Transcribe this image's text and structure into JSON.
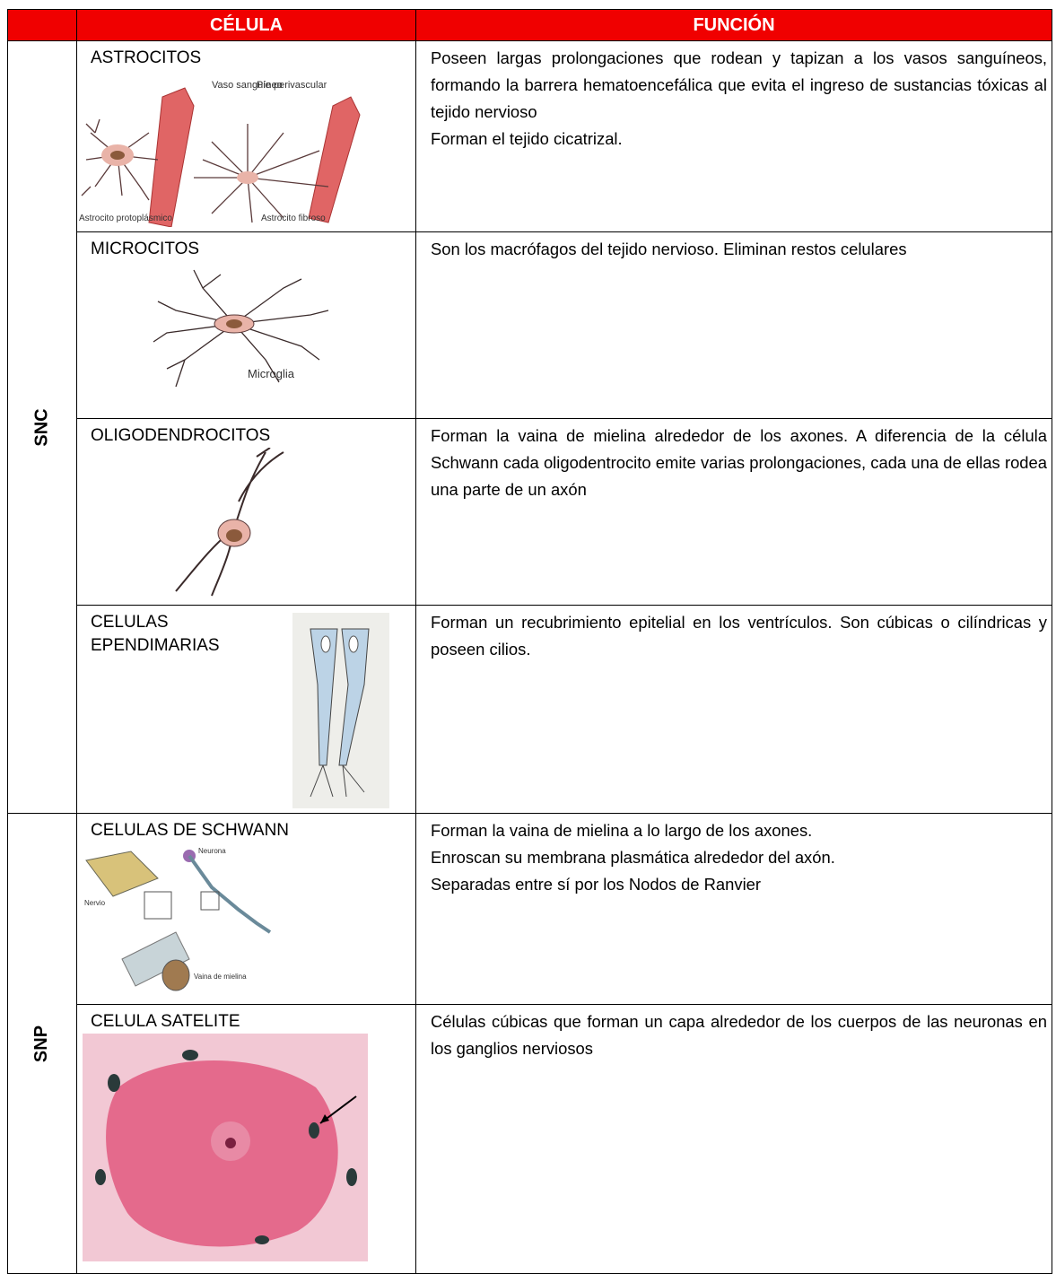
{
  "header": {
    "cell": "CÉLULA",
    "function": "FUNCIÓN"
  },
  "groups": [
    {
      "label": "SNC",
      "rows": [
        {
          "cell": [
            "ASTROCITOS"
          ],
          "function": [
            "Poseen largas prolongaciones que rodean y tapizan a los vasos sanguíneos, formando la barrera hematoencefálica que evita el ingreso de sustancias tóxicas al tejido nervioso",
            "Forman el tejido cicatrizal."
          ],
          "figure_labels": [
            "Vaso sanguíneo",
            "Pie perivascular",
            "Astrocito protoplásmico",
            "Astrocito fibroso"
          ]
        },
        {
          "cell": [
            "MICROCITOS"
          ],
          "function": [
            "Son los macrófagos del tejido nervioso. Eliminan restos celulares"
          ],
          "figure_labels": [
            "Microglia"
          ]
        },
        {
          "cell": [
            "OLIGODENDROCITOS"
          ],
          "function": [
            "Forman la vaina de mielina alrededor de los axones. A diferencia de la célula Schwann cada oligodentrocito emite varias prolongaciones, cada una de ellas rodea una parte de un axón"
          ]
        },
        {
          "cell": [
            "CELULAS",
            "EPENDIMARIAS"
          ],
          "function": [
            "Forman un recubrimiento epitelial en los ventrículos. Son cúbicas o cilíndricas y poseen cilios."
          ]
        }
      ]
    },
    {
      "label": "SNP",
      "rows": [
        {
          "cell": [
            "CELULAS DE SCHWANN"
          ],
          "function": [
            "Forman la vaina de mielina a lo largo de los axones.",
            "Enroscan su membrana plasmática alrededor del axón.",
            "Separadas entre sí por los Nodos de Ranvier"
          ],
          "figure_labels": [
            "Neurona",
            "Nervio",
            "Vaina de mielina"
          ]
        },
        {
          "cell": [
            "CELULA SATELITE"
          ],
          "function": [
            "Células cúbicas que forman un capa alrededor de los cuerpos de las neuronas en los ganglios nerviosos"
          ]
        }
      ]
    }
  ]
}
